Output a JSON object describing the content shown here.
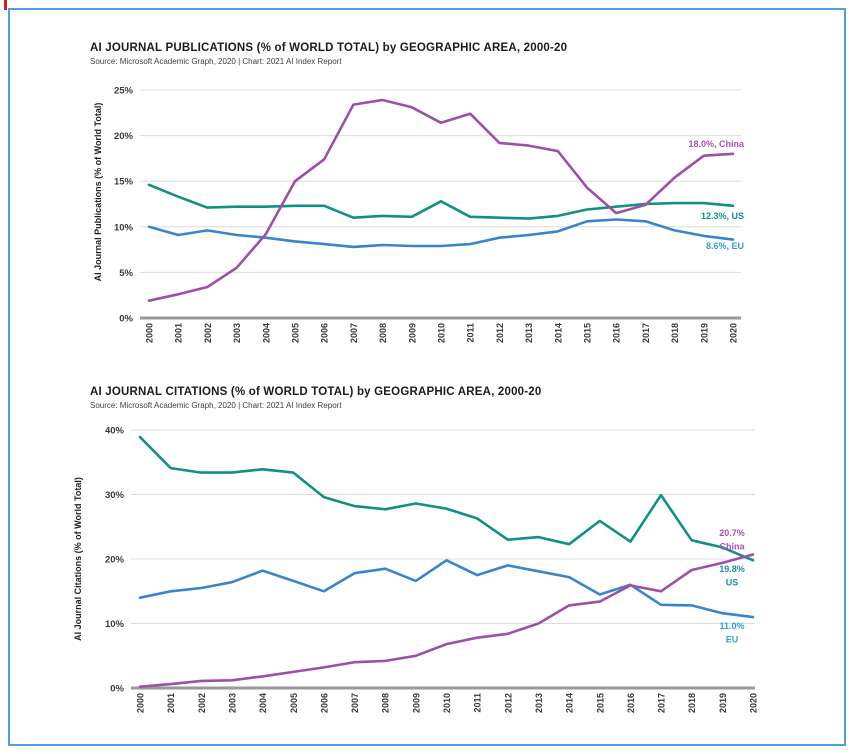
{
  "page": {
    "border_color": "#4da2d8",
    "corner_mark_color": "#cc2222",
    "background": "#ffffff"
  },
  "chart_data": [
    {
      "type": "line",
      "title": "AI JOURNAL PUBLICATIONS (% of WORLD TOTAL) by GEOGRAPHIC AREA, 2000-20",
      "source": "Source: Microsoft Academic Graph, 2020 | Chart: 2021 AI Index Report",
      "ylabel": "AI Journal Publications (% of World Total)",
      "xlabel": "",
      "grid": true,
      "legend_position": "end-of-line-labels",
      "x": [
        2000,
        2001,
        2002,
        2003,
        2004,
        2005,
        2006,
        2007,
        2008,
        2009,
        2010,
        2011,
        2012,
        2013,
        2014,
        2015,
        2016,
        2017,
        2018,
        2019,
        2020
      ],
      "xtick_labels": [
        "2000",
        "2001",
        "2002",
        "2003",
        "2004",
        "2005",
        "2006",
        "2007",
        "2008",
        "2009",
        "2010",
        "2011",
        "2012",
        "2013",
        "2014",
        "2015",
        "2016",
        "2017",
        "2018",
        "2019",
        "2020"
      ],
      "ylim": [
        0,
        25
      ],
      "yticks": [
        0,
        5,
        10,
        15,
        20,
        25
      ],
      "ytick_labels": [
        "0%",
        "5%",
        "10%",
        "15%",
        "20%",
        "25%"
      ],
      "series": [
        {
          "name": "US",
          "color": "#109184",
          "label_color": "#109184",
          "end_label_lines": [
            "12.3%, US"
          ],
          "values": [
            14.6,
            13.3,
            12.1,
            12.2,
            12.2,
            12.3,
            12.3,
            11.0,
            11.2,
            11.1,
            12.8,
            11.1,
            11.0,
            10.9,
            11.2,
            11.9,
            12.2,
            12.5,
            12.6,
            12.6,
            12.3
          ]
        },
        {
          "name": "EU",
          "color": "#3886c9",
          "label_color": "#2e9fdb",
          "end_label_lines": [
            "8.6%, EU"
          ],
          "values": [
            10.0,
            9.1,
            9.6,
            9.1,
            8.8,
            8.4,
            8.1,
            7.8,
            8.0,
            7.9,
            7.9,
            8.1,
            8.8,
            9.1,
            9.5,
            10.6,
            10.8,
            10.6,
            9.6,
            9.0,
            8.6
          ]
        },
        {
          "name": "China",
          "color": "#9d50a8",
          "label_color": "#a852b5",
          "end_label_lines": [
            "18.0%, China"
          ],
          "values": [
            1.9,
            2.6,
            3.4,
            5.5,
            9.2,
            15.0,
            17.4,
            23.4,
            23.9,
            23.1,
            21.4,
            22.4,
            19.2,
            18.9,
            18.3,
            14.3,
            11.5,
            12.4,
            15.4,
            17.8,
            18.0
          ]
        }
      ]
    },
    {
      "type": "line",
      "title": "AI JOURNAL CITATIONS (% of WORLD TOTAL) by GEOGRAPHIC AREA, 2000-20",
      "source": "Source: Microsoft Academic Graph, 2020 | Chart: 2021 AI Index Report",
      "ylabel": "AI Journal Citations (% of World Total)",
      "xlabel": "",
      "grid": true,
      "legend_position": "end-of-line-labels",
      "x": [
        2000,
        2001,
        2002,
        2003,
        2004,
        2005,
        2006,
        2007,
        2008,
        2009,
        2010,
        2011,
        2012,
        2013,
        2014,
        2015,
        2016,
        2017,
        2018,
        2019,
        2020
      ],
      "xtick_labels": [
        "2000",
        "2001",
        "2002",
        "2003",
        "2004",
        "2005",
        "2006",
        "2007",
        "2008",
        "2009",
        "2010",
        "2011",
        "2012",
        "2013",
        "2014",
        "2015",
        "2016",
        "2017",
        "2018",
        "2019",
        "2020"
      ],
      "ylim": [
        0,
        40
      ],
      "yticks": [
        0,
        10,
        20,
        30,
        40
      ],
      "ytick_labels": [
        "0%",
        "10%",
        "20%",
        "30%",
        "40%"
      ],
      "series": [
        {
          "name": "US",
          "color": "#109184",
          "label_color": "#1a91a0",
          "end_label_lines": [
            "19.8%",
            "US"
          ],
          "values": [
            38.9,
            34.1,
            33.4,
            33.4,
            33.9,
            33.4,
            29.6,
            28.2,
            27.7,
            28.6,
            27.8,
            26.3,
            23.0,
            23.4,
            22.3,
            25.9,
            22.7,
            29.9,
            22.9,
            21.8,
            19.8
          ]
        },
        {
          "name": "EU",
          "color": "#3886c9",
          "label_color": "#2e9fdb",
          "end_label_lines": [
            "11.0%",
            "EU"
          ],
          "values": [
            14.0,
            15.0,
            15.5,
            16.4,
            18.2,
            16.6,
            15.0,
            17.8,
            18.5,
            16.6,
            19.8,
            17.5,
            19.0,
            18.1,
            17.2,
            14.5,
            16.0,
            12.9,
            12.8,
            11.6,
            11.0
          ]
        },
        {
          "name": "China",
          "color": "#9d50a8",
          "label_color": "#a852b5",
          "end_label_lines": [
            "20.7%",
            "China"
          ],
          "values": [
            0.2,
            0.6,
            1.1,
            1.2,
            1.8,
            2.5,
            3.2,
            4.0,
            4.2,
            5.0,
            6.8,
            7.8,
            8.4,
            10.0,
            12.8,
            13.4,
            15.9,
            15.0,
            18.3,
            19.4,
            20.7
          ]
        }
      ]
    }
  ],
  "styles": {
    "grid_color": "#dcdcdc",
    "axis_color": "#999999",
    "tick_color": "#3a3a3a"
  }
}
